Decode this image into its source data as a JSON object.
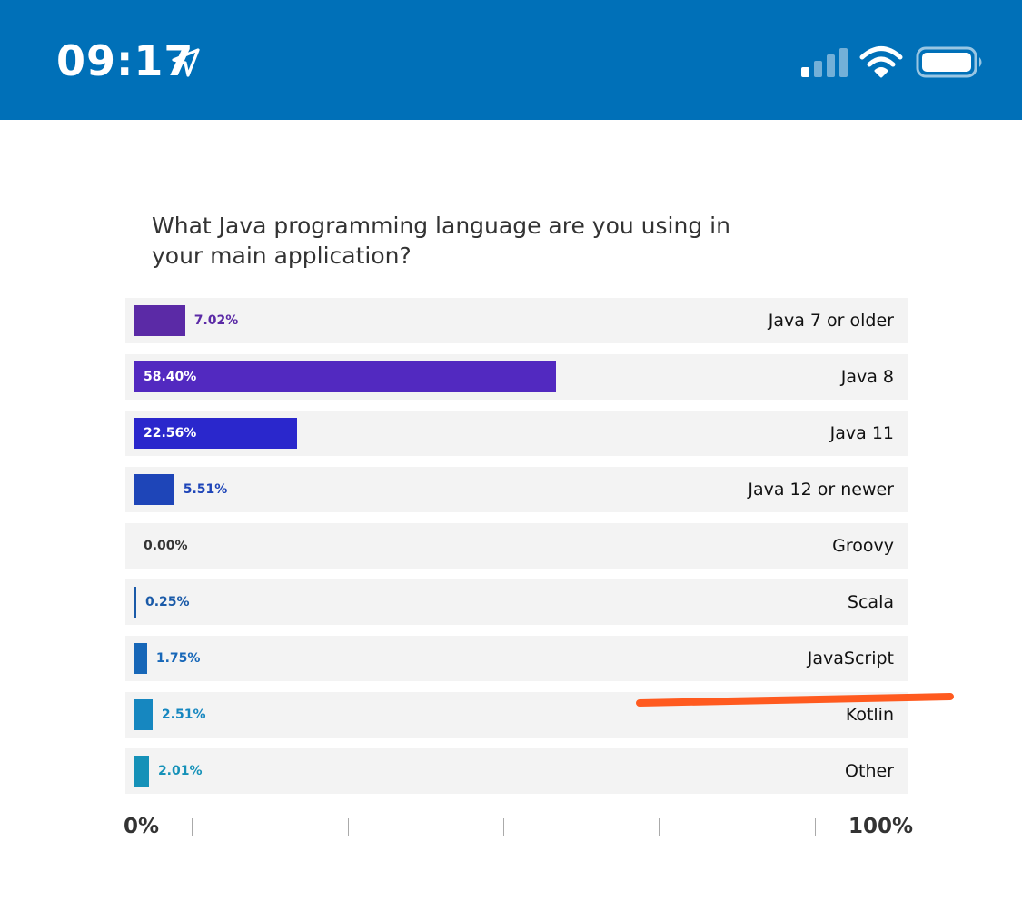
{
  "status_bar": {
    "time": "09:17",
    "background": "#0070b8",
    "icons": [
      "location-arrow-icon",
      "cellular-signal-icon",
      "wifi-icon",
      "battery-icon"
    ]
  },
  "question": "What Java programming language are you using in your main application?",
  "chart_data": {
    "type": "bar",
    "orientation": "horizontal",
    "title": "What Java programming language are you using in your main application?",
    "categories": [
      "Java 7 or older",
      "Java 8",
      "Java 11",
      "Java 12 or newer",
      "Groovy",
      "Scala",
      "JavaScript",
      "Kotlin",
      "Other"
    ],
    "values": [
      7.02,
      58.4,
      22.56,
      5.51,
      0.0,
      0.25,
      1.75,
      2.51,
      2.01
    ],
    "labels": [
      "7.02%",
      "58.40%",
      "22.56%",
      "5.51%",
      "0.00%",
      "0.25%",
      "1.75%",
      "2.51%",
      "2.01%"
    ],
    "colors": [
      "#5b2aa6",
      "#5229c0",
      "#2a27cc",
      "#1e45b8",
      "#1a4fa8",
      "#1a5aa8",
      "#1767b8",
      "#1687c0",
      "#1591b8"
    ],
    "xlim": [
      0,
      100
    ],
    "axis_min_label": "0%",
    "axis_max_label": "100%",
    "grid": false,
    "legend": "none"
  },
  "annotation": {
    "type": "hand-drawn underline",
    "color": "#ff5a1f"
  }
}
